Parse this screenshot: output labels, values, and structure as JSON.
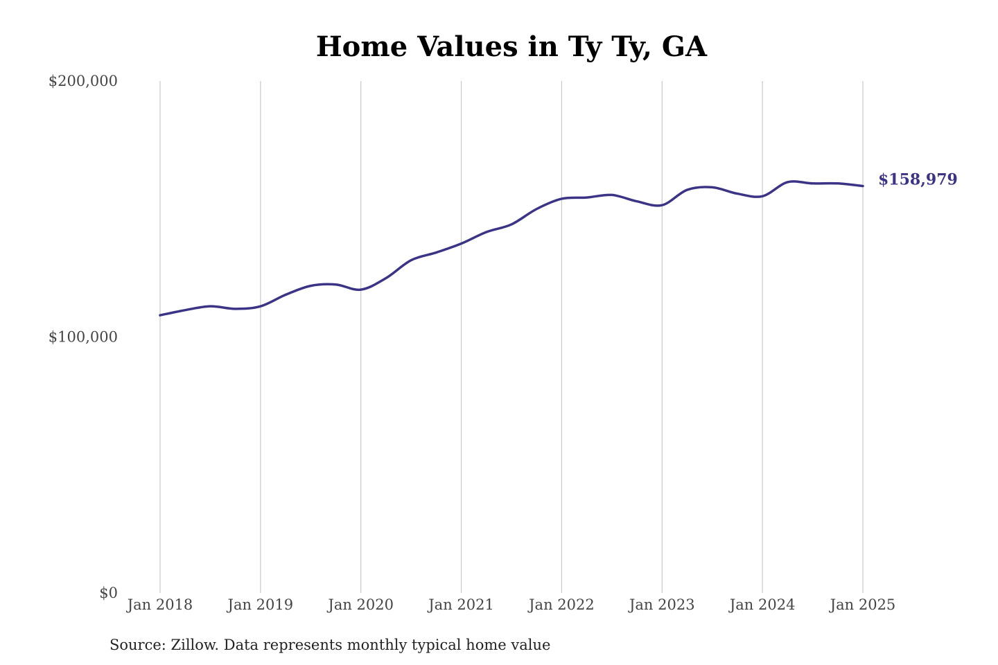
{
  "chart_data": {
    "type": "line",
    "title": "Home Values in Ty Ty, GA",
    "source": "Source: Zillow. Data represents monthly typical home value",
    "ylim": [
      0,
      200000
    ],
    "yticks": [
      {
        "value": 0,
        "label": "$0"
      },
      {
        "value": 100000,
        "label": "$100,000"
      },
      {
        "value": 200000,
        "label": "$200,000"
      }
    ],
    "xlim": [
      "2018-01",
      "2025-01"
    ],
    "xticks": [
      {
        "value": "2018-01",
        "label": "Jan 2018"
      },
      {
        "value": "2019-01",
        "label": "Jan 2019"
      },
      {
        "value": "2020-01",
        "label": "Jan 2020"
      },
      {
        "value": "2021-01",
        "label": "Jan 2021"
      },
      {
        "value": "2022-01",
        "label": "Jan 2022"
      },
      {
        "value": "2023-01",
        "label": "Jan 2023"
      },
      {
        "value": "2024-01",
        "label": "Jan 2024"
      },
      {
        "value": "2025-01",
        "label": "Jan 2025"
      }
    ],
    "grid": {
      "vertical": true,
      "horizontal": false
    },
    "line_color": "#3b3486",
    "end_label": "$158,979",
    "series": [
      {
        "x": [
          "2018-01",
          "2018-04",
          "2018-07",
          "2018-10",
          "2019-01",
          "2019-04",
          "2019-07",
          "2019-10",
          "2020-01",
          "2020-04",
          "2020-07",
          "2020-10",
          "2021-01",
          "2021-04",
          "2021-07",
          "2021-10",
          "2022-01",
          "2022-04",
          "2022-07",
          "2022-10",
          "2023-01",
          "2023-04",
          "2023-07",
          "2023-10",
          "2024-01",
          "2024-04",
          "2024-07",
          "2024-10",
          "2025-01"
        ],
        "values": [
          108500,
          110500,
          112000,
          111000,
          112000,
          116500,
          120000,
          120500,
          118500,
          123000,
          130000,
          133000,
          136500,
          141000,
          144000,
          150000,
          154000,
          154500,
          155500,
          153000,
          151500,
          157500,
          158500,
          156000,
          155000,
          160500,
          160000,
          160000,
          158979
        ]
      }
    ]
  }
}
